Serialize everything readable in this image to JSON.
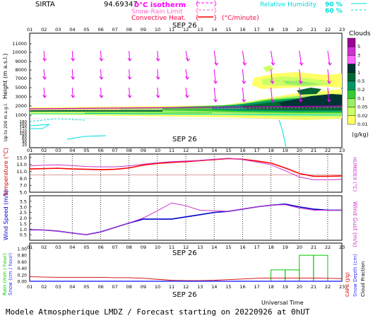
{
  "header": {
    "station": "SIRTA",
    "station_code": "94.69347",
    "legend_isotherm": "0°C isotherm",
    "legend_snowrain": "Snow-Rain Limit",
    "legend_convective": "Convective Heat.",
    "legend_convective_unit": "(°C/minute)",
    "legend_rh": "Relative Humidity",
    "rh_levels": [
      "90 %",
      "60 %"
    ],
    "date_label": "SEP 26"
  },
  "footer": {
    "universal_time": "Universal Time",
    "title": "Modele Atmospherique LMDZ / Forecast starting on 20220926 at 0hUT"
  },
  "colors": {
    "temperature": "#ff0000",
    "humidex": "#cc33cc",
    "wind_speed": "#0000cc",
    "wind_gust": "#cc33cc",
    "rain": "#00cc00",
    "snow": "#3333ff",
    "cape": "#cc0000",
    "wind_arrow": "#ee00ee",
    "isotherm": "#cc00cc",
    "rh": "#00dddd"
  },
  "chart_data": [
    {
      "type": "heatmap",
      "name": "clouds",
      "x_hours": [
        "01",
        "02",
        "03",
        "04",
        "05",
        "06",
        "07",
        "08",
        "09",
        "10",
        "11",
        "12",
        "13",
        "14",
        "15",
        "16",
        "17",
        "18",
        "19",
        "20",
        "21",
        "22",
        "23"
      ],
      "ylabel": "Height (m a.s.l.)",
      "ylabel2": "Up to 200 m a.g.l.",
      "yticks_upper": [
        11000,
        10000,
        9000,
        8000,
        7000,
        5000,
        3000,
        2000,
        1000
      ],
      "yticks_lower": [
        180,
        160,
        140,
        120,
        100,
        80,
        60,
        40,
        20
      ],
      "legend_title": "Clouds",
      "legend_unit": "(g/kg)",
      "colorbar_levels": [
        "5",
        "3",
        "2",
        "1",
        "0.5",
        "0.2",
        "0.1",
        "0.05",
        "0.02",
        "0.01"
      ],
      "colorbar_colors": [
        "#990099",
        "#cc33cc",
        "#ff66ff",
        "#003333",
        "#006633",
        "#009966",
        "#33cc33",
        "#99ee66",
        "#ccff66",
        "#ffff66"
      ]
    },
    {
      "type": "line",
      "name": "temperature",
      "x": [
        "01",
        "02",
        "03",
        "04",
        "05",
        "06",
        "07",
        "08",
        "09",
        "10",
        "11",
        "12",
        "13",
        "14",
        "15",
        "16",
        "17",
        "18",
        "19",
        "20",
        "21",
        "22",
        "23"
      ],
      "ylabel": "Temperature (°C)",
      "ylabel_right": "HUMIDEX (°C)",
      "yticks": [
        "15.0",
        "13.0",
        "11.0",
        "9.0",
        "7.0",
        "5.0"
      ],
      "ylim": [
        5.0,
        16.0
      ],
      "series": [
        {
          "name": "Temperature",
          "values": [
            11.7,
            11.8,
            11.9,
            11.7,
            11.6,
            11.5,
            11.6,
            12.0,
            12.8,
            13.3,
            13.6,
            13.8,
            14.1,
            14.4,
            14.7,
            14.5,
            14.0,
            13.4,
            12.0,
            10.4,
            9.6,
            9.6,
            9.7
          ]
        },
        {
          "name": "HUMIDEX",
          "values": [
            12.6,
            12.8,
            12.9,
            12.7,
            12.4,
            12.3,
            12.3,
            12.6,
            13.1,
            13.5,
            13.8,
            14.0,
            14.2,
            14.5,
            14.8,
            14.4,
            13.7,
            12.9,
            11.2,
            9.4,
            8.6,
            8.6,
            8.7
          ]
        }
      ]
    },
    {
      "type": "line",
      "name": "wind",
      "x": [
        "01",
        "02",
        "03",
        "04",
        "05",
        "06",
        "07",
        "08",
        "09",
        "10",
        "11",
        "12",
        "13",
        "14",
        "15",
        "16",
        "17",
        "18",
        "19",
        "20",
        "21",
        "22",
        "23"
      ],
      "ylabel": "Wind Speed (m/s)",
      "ylabel_right": "Wind Gust (m/s)",
      "yticks": [
        "3.5",
        "3.0",
        "2.5",
        "2.0",
        "1.5",
        "1.0",
        "0.5"
      ],
      "ylim": [
        0.0,
        4.0
      ],
      "series": [
        {
          "name": "Wind Speed",
          "values": [
            0.95,
            0.92,
            0.82,
            0.65,
            0.5,
            0.75,
            1.15,
            1.55,
            1.9,
            1.9,
            1.9,
            2.1,
            2.3,
            2.5,
            2.6,
            2.8,
            3.0,
            3.15,
            3.25,
            3.0,
            2.8,
            2.7,
            2.7
          ]
        },
        {
          "name": "Wind Gust",
          "values": [
            0.95,
            0.92,
            0.82,
            0.65,
            0.5,
            0.75,
            1.15,
            1.55,
            2.0,
            2.65,
            3.35,
            3.1,
            2.7,
            2.65,
            2.6,
            2.8,
            3.0,
            3.15,
            3.2,
            2.9,
            2.7,
            2.7,
            2.7
          ]
        }
      ]
    },
    {
      "type": "bar",
      "name": "precipitation",
      "x": [
        "01",
        "02",
        "03",
        "04",
        "05",
        "06",
        "07",
        "08",
        "09",
        "10",
        "11",
        "12",
        "13",
        "14",
        "15",
        "16",
        "17",
        "18",
        "19",
        "20",
        "21",
        "22",
        "23"
      ],
      "ylabel": "Rain (mm / hour)",
      "ylabel2": "Snow (cm / hour)",
      "ylabel_right": "CAPE (J/g)",
      "ylabel_right2": "Snow Depth (cm)",
      "ylabel_right3": "Cloud Fraction",
      "yticks": [
        "1.00",
        "0.80",
        "0.60",
        "0.40",
        "0.20",
        "0.00"
      ],
      "ylim": [
        0.0,
        1.0
      ],
      "series": [
        {
          "name": "Rain",
          "values": [
            0,
            0,
            0,
            0,
            0,
            0,
            0,
            0,
            0,
            0,
            0,
            0,
            0,
            0,
            0,
            0,
            0,
            0.35,
            0.35,
            0.8,
            0.8,
            0,
            0
          ]
        },
        {
          "name": "CAPE",
          "values": [
            0.14,
            0.13,
            0.12,
            0.12,
            0.12,
            0.12,
            0.11,
            0.11,
            0.09,
            0.06,
            0.03,
            0.02,
            0.02,
            0.03,
            0.05,
            0.07,
            0.09,
            0.1,
            0.1,
            0.1,
            0.1,
            0.09,
            0.08
          ]
        }
      ]
    }
  ]
}
